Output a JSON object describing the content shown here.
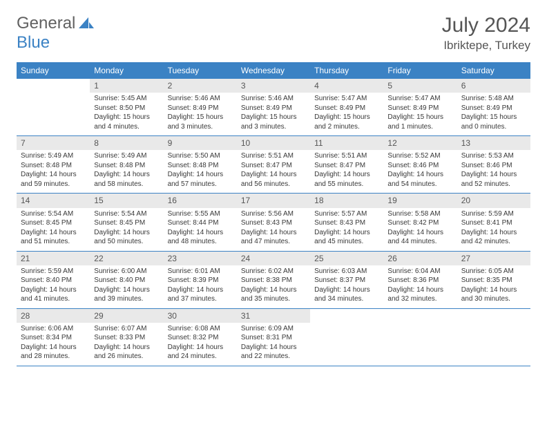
{
  "brand": {
    "part1": "General",
    "part2": "Blue"
  },
  "title": "July 2024",
  "location": "Ibriktepe, Turkey",
  "colors": {
    "header_bg": "#3b82c4",
    "header_text": "#ffffff",
    "daynum_bg": "#e9e9e9",
    "daynum_text": "#555555",
    "body_text": "#383838",
    "border": "#3b82c4",
    "title_text": "#555555",
    "logo_gray": "#616161",
    "logo_blue": "#3b82c4"
  },
  "day_names": [
    "Sunday",
    "Monday",
    "Tuesday",
    "Wednesday",
    "Thursday",
    "Friday",
    "Saturday"
  ],
  "first_day_offset": 1,
  "days": [
    {
      "n": 1,
      "sunrise": "5:45 AM",
      "sunset": "8:50 PM",
      "dh": 15,
      "dm": 4
    },
    {
      "n": 2,
      "sunrise": "5:46 AM",
      "sunset": "8:49 PM",
      "dh": 15,
      "dm": 3
    },
    {
      "n": 3,
      "sunrise": "5:46 AM",
      "sunset": "8:49 PM",
      "dh": 15,
      "dm": 3
    },
    {
      "n": 4,
      "sunrise": "5:47 AM",
      "sunset": "8:49 PM",
      "dh": 15,
      "dm": 2
    },
    {
      "n": 5,
      "sunrise": "5:47 AM",
      "sunset": "8:49 PM",
      "dh": 15,
      "dm": 1
    },
    {
      "n": 6,
      "sunrise": "5:48 AM",
      "sunset": "8:49 PM",
      "dh": 15,
      "dm": 0
    },
    {
      "n": 7,
      "sunrise": "5:49 AM",
      "sunset": "8:48 PM",
      "dh": 14,
      "dm": 59
    },
    {
      "n": 8,
      "sunrise": "5:49 AM",
      "sunset": "8:48 PM",
      "dh": 14,
      "dm": 58
    },
    {
      "n": 9,
      "sunrise": "5:50 AM",
      "sunset": "8:48 PM",
      "dh": 14,
      "dm": 57
    },
    {
      "n": 10,
      "sunrise": "5:51 AM",
      "sunset": "8:47 PM",
      "dh": 14,
      "dm": 56
    },
    {
      "n": 11,
      "sunrise": "5:51 AM",
      "sunset": "8:47 PM",
      "dh": 14,
      "dm": 55
    },
    {
      "n": 12,
      "sunrise": "5:52 AM",
      "sunset": "8:46 PM",
      "dh": 14,
      "dm": 54
    },
    {
      "n": 13,
      "sunrise": "5:53 AM",
      "sunset": "8:46 PM",
      "dh": 14,
      "dm": 52
    },
    {
      "n": 14,
      "sunrise": "5:54 AM",
      "sunset": "8:45 PM",
      "dh": 14,
      "dm": 51
    },
    {
      "n": 15,
      "sunrise": "5:54 AM",
      "sunset": "8:45 PM",
      "dh": 14,
      "dm": 50
    },
    {
      "n": 16,
      "sunrise": "5:55 AM",
      "sunset": "8:44 PM",
      "dh": 14,
      "dm": 48
    },
    {
      "n": 17,
      "sunrise": "5:56 AM",
      "sunset": "8:43 PM",
      "dh": 14,
      "dm": 47
    },
    {
      "n": 18,
      "sunrise": "5:57 AM",
      "sunset": "8:43 PM",
      "dh": 14,
      "dm": 45
    },
    {
      "n": 19,
      "sunrise": "5:58 AM",
      "sunset": "8:42 PM",
      "dh": 14,
      "dm": 44
    },
    {
      "n": 20,
      "sunrise": "5:59 AM",
      "sunset": "8:41 PM",
      "dh": 14,
      "dm": 42
    },
    {
      "n": 21,
      "sunrise": "5:59 AM",
      "sunset": "8:40 PM",
      "dh": 14,
      "dm": 41
    },
    {
      "n": 22,
      "sunrise": "6:00 AM",
      "sunset": "8:40 PM",
      "dh": 14,
      "dm": 39
    },
    {
      "n": 23,
      "sunrise": "6:01 AM",
      "sunset": "8:39 PM",
      "dh": 14,
      "dm": 37
    },
    {
      "n": 24,
      "sunrise": "6:02 AM",
      "sunset": "8:38 PM",
      "dh": 14,
      "dm": 35
    },
    {
      "n": 25,
      "sunrise": "6:03 AM",
      "sunset": "8:37 PM",
      "dh": 14,
      "dm": 34
    },
    {
      "n": 26,
      "sunrise": "6:04 AM",
      "sunset": "8:36 PM",
      "dh": 14,
      "dm": 32
    },
    {
      "n": 27,
      "sunrise": "6:05 AM",
      "sunset": "8:35 PM",
      "dh": 14,
      "dm": 30
    },
    {
      "n": 28,
      "sunrise": "6:06 AM",
      "sunset": "8:34 PM",
      "dh": 14,
      "dm": 28
    },
    {
      "n": 29,
      "sunrise": "6:07 AM",
      "sunset": "8:33 PM",
      "dh": 14,
      "dm": 26
    },
    {
      "n": 30,
      "sunrise": "6:08 AM",
      "sunset": "8:32 PM",
      "dh": 14,
      "dm": 24
    },
    {
      "n": 31,
      "sunrise": "6:09 AM",
      "sunset": "8:31 PM",
      "dh": 14,
      "dm": 22
    }
  ],
  "labels": {
    "sunrise_prefix": "Sunrise: ",
    "sunset_prefix": "Sunset: ",
    "daylight_prefix": "Daylight: ",
    "hours_word": " hours",
    "and_word": "and ",
    "minutes_word": " minutes."
  }
}
